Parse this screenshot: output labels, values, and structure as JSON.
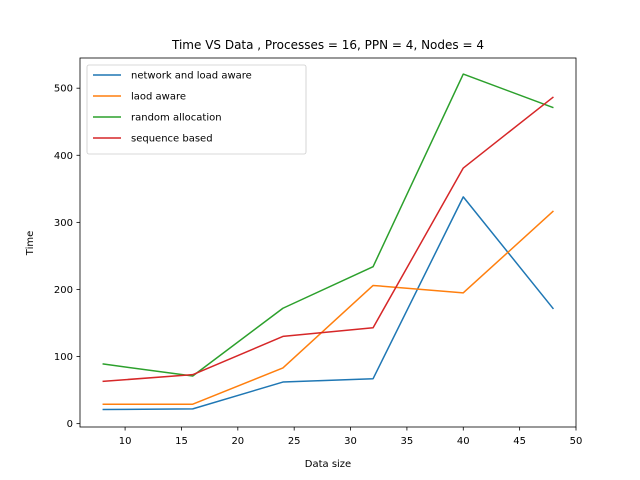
{
  "chart_data": {
    "type": "line",
    "title": "Time VS Data , Processes = 16, PPN = 4, Nodes = 4",
    "xlabel": "Data size",
    "ylabel": "Time",
    "x": [
      8,
      16,
      24,
      32,
      40,
      48
    ],
    "xlim": [
      6,
      50
    ],
    "ylim": [
      -5,
      545
    ],
    "xticks": [
      10,
      15,
      20,
      25,
      30,
      35,
      40,
      45,
      50
    ],
    "yticks": [
      0,
      100,
      200,
      300,
      400,
      500
    ],
    "grid": false,
    "legend_position": "top-left",
    "series": [
      {
        "name": "network and load aware",
        "color": "#1f77b4",
        "values": [
          21,
          22,
          62,
          67,
          338,
          171
        ]
      },
      {
        "name": "laod aware",
        "color": "#ff7f0e",
        "values": [
          29,
          29,
          83,
          206,
          195,
          317
        ]
      },
      {
        "name": "random allocation",
        "color": "#2ca02c",
        "values": [
          89,
          71,
          172,
          234,
          521,
          471
        ]
      },
      {
        "name": "sequence based",
        "color": "#d62728",
        "values": [
          63,
          73,
          130,
          143,
          381,
          487
        ]
      }
    ]
  }
}
